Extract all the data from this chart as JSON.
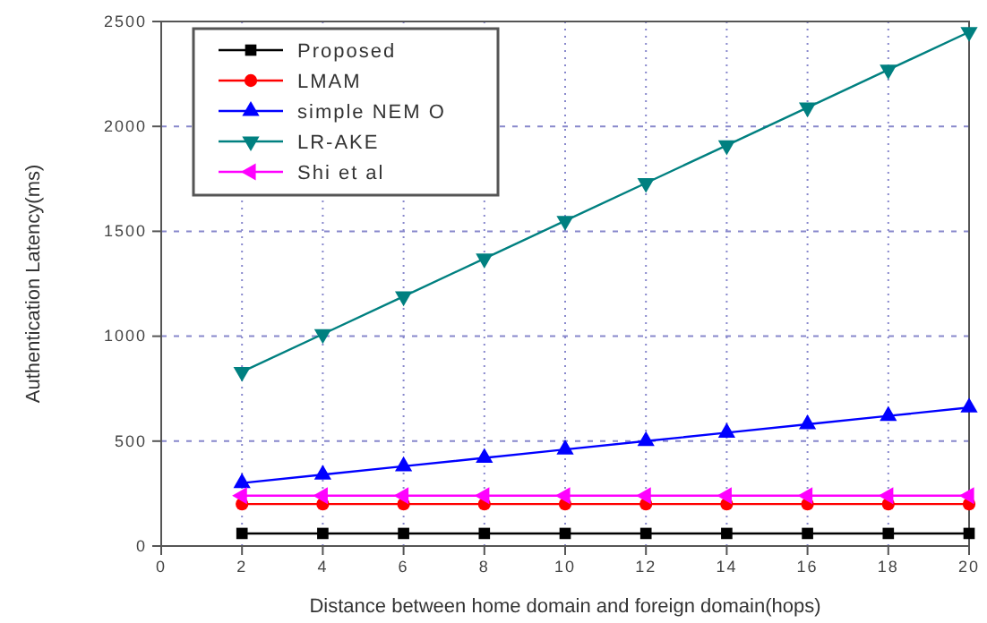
{
  "chart_data": {
    "type": "line",
    "xlabel": "Distance between home domain and foreign domain(hops)",
    "ylabel": "Authentication Latency(ms)",
    "x": [
      2,
      4,
      6,
      8,
      10,
      12,
      14,
      16,
      18,
      20
    ],
    "xlim": [
      0,
      20
    ],
    "xticks": [
      0,
      2,
      4,
      6,
      8,
      10,
      12,
      14,
      16,
      18,
      20
    ],
    "ylim": [
      0,
      2500
    ],
    "yticks": [
      0,
      500,
      1000,
      1500,
      2000,
      2500
    ],
    "grid": true,
    "legend": "top left",
    "line_style": "solid",
    "series": [
      {
        "name": "Proposed",
        "color": "#000000",
        "marker": "square",
        "values": [
          60,
          60,
          60,
          60,
          60,
          60,
          60,
          60,
          60,
          60
        ]
      },
      {
        "name": "LMAM",
        "color": "#ff0000",
        "marker": "circle",
        "values": [
          200,
          200,
          200,
          200,
          200,
          200,
          200,
          200,
          200,
          200
        ]
      },
      {
        "name": "simple NEM O",
        "color": "#0000ff",
        "marker": "triangle",
        "values": [
          300,
          340,
          380,
          420,
          460,
          500,
          540,
          580,
          620,
          660
        ]
      },
      {
        "name": "LR-AKE",
        "color": "#008080",
        "marker": "triangle-down",
        "values": [
          830,
          1010,
          1190,
          1370,
          1550,
          1730,
          1910,
          2090,
          2270,
          2450
        ]
      },
      {
        "name": "Shi et al",
        "color": "#ff00ff",
        "marker": "triangle-left",
        "values": [
          240,
          240,
          240,
          240,
          240,
          240,
          240,
          240,
          240,
          240
        ]
      }
    ]
  }
}
